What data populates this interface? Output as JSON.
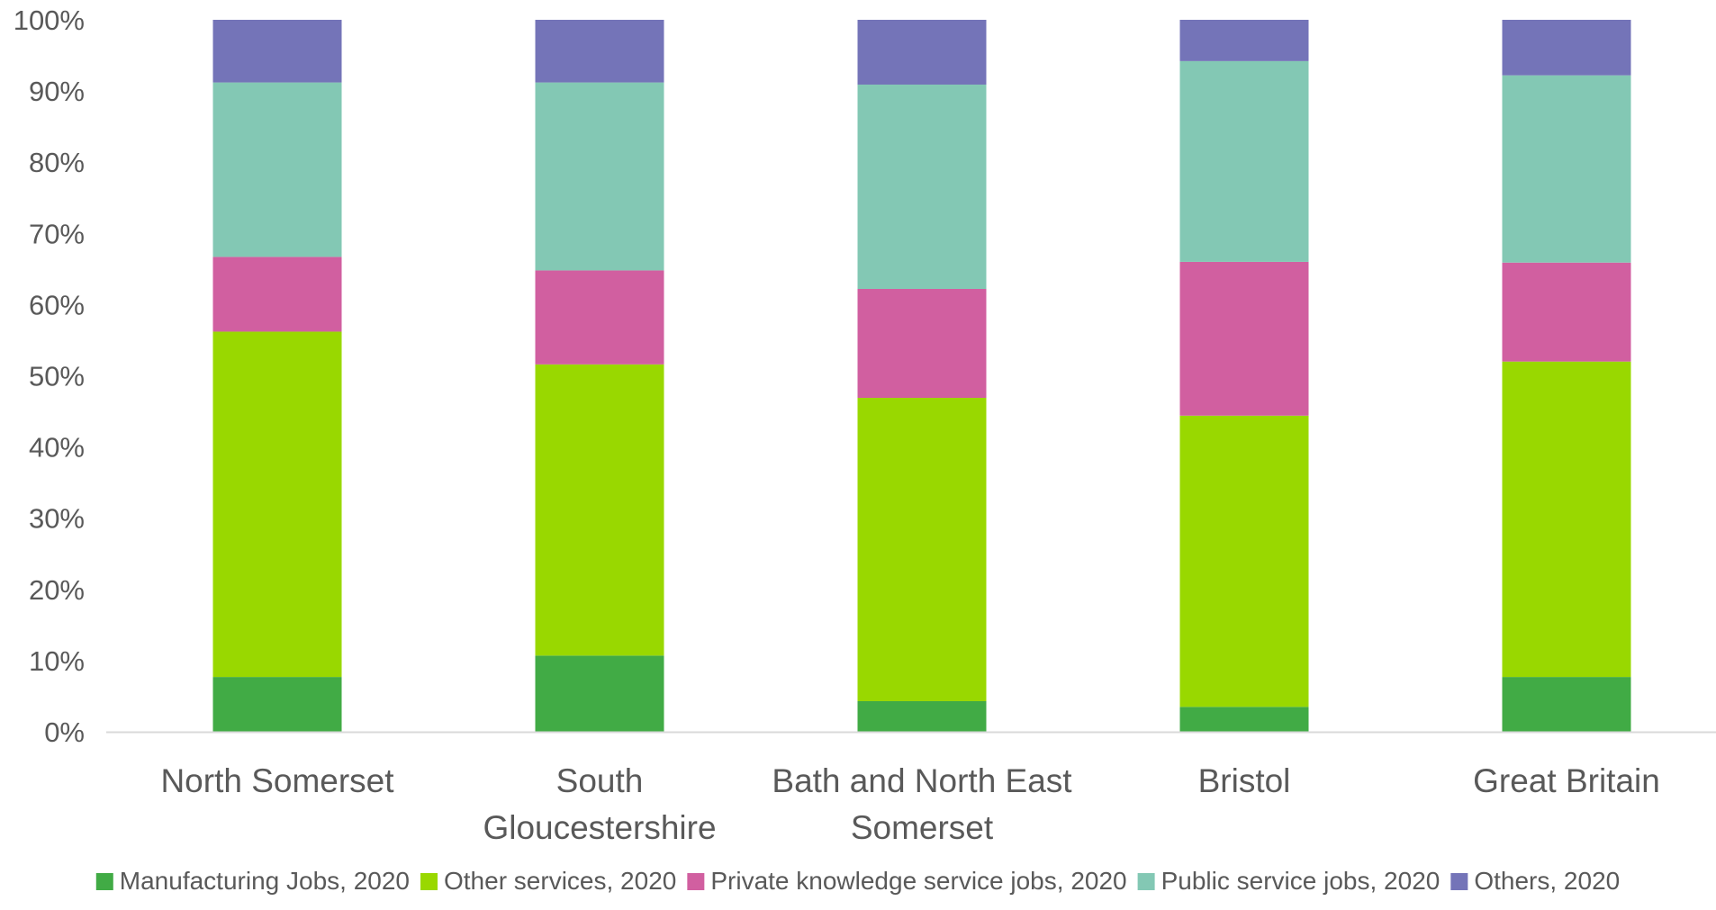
{
  "chart_data": {
    "type": "bar",
    "stacked": true,
    "percent": true,
    "title": "",
    "xlabel": "",
    "ylabel": "",
    "ylim": [
      0,
      100
    ],
    "yticks": [
      "0%",
      "10%",
      "20%",
      "30%",
      "40%",
      "50%",
      "60%",
      "70%",
      "80%",
      "90%",
      "100%"
    ],
    "categories": [
      [
        "North Somerset"
      ],
      [
        "South",
        "Gloucestershire"
      ],
      [
        "Bath and North East",
        "Somerset"
      ],
      [
        "Bristol"
      ],
      [
        "Great Britain"
      ]
    ],
    "series": [
      {
        "name": "Manufacturing Jobs, 2020",
        "color": "#41AB45",
        "values": [
          7.7,
          10.7,
          4.3,
          3.5,
          7.7
        ]
      },
      {
        "name": "Other services, 2020",
        "color": "#99D800",
        "values": [
          48.5,
          40.9,
          42.6,
          40.9,
          44.3
        ]
      },
      {
        "name": "Private knowledge service jobs, 2020",
        "color": "#D15FA0",
        "values": [
          10.5,
          13.2,
          15.3,
          21.6,
          13.9
        ]
      },
      {
        "name": "Public service jobs, 2020",
        "color": "#83C8B4",
        "values": [
          24.5,
          26.4,
          28.7,
          28.2,
          26.3
        ]
      },
      {
        "name": "Others, 2020",
        "color": "#7474B8",
        "values": [
          8.8,
          8.8,
          9.1,
          5.8,
          7.8
        ]
      }
    ],
    "grid": false,
    "legend": "bottom"
  }
}
